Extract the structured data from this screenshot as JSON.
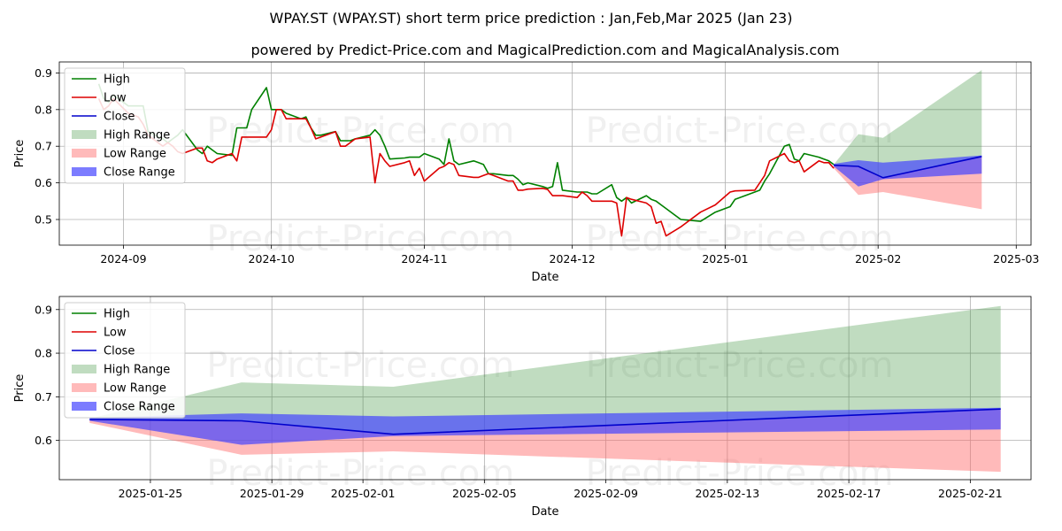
{
  "title": "WPAY.ST (WPAY.ST) short term price prediction : Jan,Feb,Mar 2025 (Jan 23)",
  "subtitle": "powered by Predict-Price.com and MagicalPrediction.com and MagicalAnalysis.com",
  "watermark": "Predict-Price.com",
  "colors": {
    "high": "#008000",
    "low": "#dd0000",
    "close": "#0000cc",
    "high_range": "#2e8b2e",
    "low_range": "#ff6666",
    "close_range": "#4444ff"
  },
  "chart_data": [
    {
      "type": "line",
      "xlabel": "Date",
      "ylabel": "Price",
      "xlim": [
        "2024-08-19",
        "2025-03-04"
      ],
      "ylim": [
        0.43,
        0.93
      ],
      "grid": true,
      "legend_position": "top-left",
      "x_ticks": [
        "2024-09",
        "2024-10",
        "2024-11",
        "2024-12",
        "2025-01",
        "2025-02",
        "2025-03"
      ],
      "y_ticks": [
        0.5,
        0.6,
        0.7,
        0.8,
        0.9
      ],
      "legend": [
        "High",
        "Low",
        "Close",
        "High Range",
        "Low Range",
        "Close Range"
      ],
      "series": [
        {
          "name": "High",
          "x": [
            "2024-08-27",
            "2024-08-28",
            "2024-08-29",
            "2024-08-30",
            "2024-09-02",
            "2024-09-03",
            "2024-09-04",
            "2024-09-05",
            "2024-09-06",
            "2024-09-09",
            "2024-09-10",
            "2024-09-11",
            "2024-09-12",
            "2024-09-13",
            "2024-09-16",
            "2024-09-17",
            "2024-09-18",
            "2024-09-19",
            "2024-09-20",
            "2024-09-23",
            "2024-09-24",
            "2024-09-25",
            "2024-09-26",
            "2024-09-27",
            "2024-09-30",
            "2024-10-01",
            "2024-10-02",
            "2024-10-03",
            "2024-10-04",
            "2024-10-07",
            "2024-10-08",
            "2024-10-09",
            "2024-10-10",
            "2024-10-11",
            "2024-10-14",
            "2024-10-15",
            "2024-10-16",
            "2024-10-17",
            "2024-10-18",
            "2024-10-21",
            "2024-10-22",
            "2024-10-23",
            "2024-10-24",
            "2024-10-25",
            "2024-10-28",
            "2024-10-29",
            "2024-10-30",
            "2024-10-31",
            "2024-11-01",
            "2024-11-04",
            "2024-11-05",
            "2024-11-06",
            "2024-11-07",
            "2024-11-08",
            "2024-11-11",
            "2024-11-12",
            "2024-11-13",
            "2024-11-14",
            "2024-11-15",
            "2024-11-18",
            "2024-11-19",
            "2024-11-20",
            "2024-11-21",
            "2024-11-22",
            "2024-11-25",
            "2024-11-26",
            "2024-11-27",
            "2024-11-28",
            "2024-11-29",
            "2024-12-02",
            "2024-12-03",
            "2024-12-04",
            "2024-12-05",
            "2024-12-06",
            "2024-12-09",
            "2024-12-10",
            "2024-12-11",
            "2024-12-12",
            "2024-12-13",
            "2024-12-16",
            "2024-12-17",
            "2024-12-18",
            "2024-12-19",
            "2024-12-20",
            "2024-12-23",
            "2024-12-27",
            "2024-12-30",
            "2025-01-02",
            "2025-01-03",
            "2025-01-07",
            "2025-01-08",
            "2025-01-09",
            "2025-01-10",
            "2025-01-13",
            "2025-01-14",
            "2025-01-15",
            "2025-01-16",
            "2025-01-17",
            "2025-01-20",
            "2025-01-21",
            "2025-01-22",
            "2025-01-23"
          ],
          "values": [
            0.87,
            0.83,
            0.82,
            0.84,
            0.81,
            0.81,
            0.81,
            0.81,
            0.74,
            0.72,
            0.71,
            0.72,
            0.73,
            0.745,
            0.69,
            0.68,
            0.7,
            0.69,
            0.68,
            0.675,
            0.75,
            0.75,
            0.75,
            0.8,
            0.86,
            0.8,
            0.8,
            0.8,
            0.79,
            0.775,
            0.78,
            0.75,
            0.73,
            0.73,
            0.74,
            0.715,
            0.715,
            0.715,
            0.72,
            0.73,
            0.745,
            0.73,
            0.7,
            0.665,
            0.668,
            0.67,
            0.67,
            0.67,
            0.68,
            0.665,
            0.65,
            0.72,
            0.66,
            0.65,
            0.66,
            0.655,
            0.65,
            0.625,
            0.625,
            0.62,
            0.62,
            0.61,
            0.595,
            0.6,
            0.59,
            0.585,
            0.59,
            0.655,
            0.58,
            0.575,
            0.575,
            0.575,
            0.57,
            0.57,
            0.595,
            0.56,
            0.55,
            0.56,
            0.545,
            0.565,
            0.555,
            0.55,
            0.54,
            0.53,
            0.5,
            0.495,
            0.52,
            0.535,
            0.555,
            0.575,
            0.58,
            0.605,
            0.625,
            0.7,
            0.705,
            0.665,
            0.66,
            0.68,
            0.67,
            0.665,
            0.66,
            0.65
          ]
        },
        {
          "name": "Low",
          "x": [
            "2024-08-27",
            "2024-08-28",
            "2024-08-29",
            "2024-08-30",
            "2024-09-02",
            "2024-09-03",
            "2024-09-04",
            "2024-09-05",
            "2024-09-06",
            "2024-09-09",
            "2024-09-10",
            "2024-09-11",
            "2024-09-12",
            "2024-09-13",
            "2024-09-16",
            "2024-09-17",
            "2024-09-18",
            "2024-09-19",
            "2024-09-20",
            "2024-09-23",
            "2024-09-24",
            "2024-09-25",
            "2024-09-26",
            "2024-09-27",
            "2024-09-30",
            "2024-10-01",
            "2024-10-02",
            "2024-10-03",
            "2024-10-04",
            "2024-10-07",
            "2024-10-08",
            "2024-10-09",
            "2024-10-10",
            "2024-10-11",
            "2024-10-14",
            "2024-10-15",
            "2024-10-16",
            "2024-10-17",
            "2024-10-18",
            "2024-10-21",
            "2024-10-22",
            "2024-10-23",
            "2024-10-24",
            "2024-10-25",
            "2024-10-28",
            "2024-10-29",
            "2024-10-30",
            "2024-10-31",
            "2024-11-01",
            "2024-11-04",
            "2024-11-05",
            "2024-11-06",
            "2024-11-07",
            "2024-11-08",
            "2024-11-11",
            "2024-11-12",
            "2024-11-13",
            "2024-11-14",
            "2024-11-15",
            "2024-11-18",
            "2024-11-19",
            "2024-11-20",
            "2024-11-21",
            "2024-11-22",
            "2024-11-25",
            "2024-11-26",
            "2024-11-27",
            "2024-11-28",
            "2024-11-29",
            "2024-12-02",
            "2024-12-03",
            "2024-12-04",
            "2024-12-05",
            "2024-12-06",
            "2024-12-09",
            "2024-12-10",
            "2024-12-11",
            "2024-12-12",
            "2024-12-13",
            "2024-12-16",
            "2024-12-17",
            "2024-12-18",
            "2024-12-19",
            "2024-12-20",
            "2024-12-23",
            "2024-12-27",
            "2024-12-30",
            "2025-01-02",
            "2025-01-03",
            "2025-01-07",
            "2025-01-08",
            "2025-01-09",
            "2025-01-10",
            "2025-01-13",
            "2025-01-14",
            "2025-01-15",
            "2025-01-16",
            "2025-01-17",
            "2025-01-20",
            "2025-01-21",
            "2025-01-22",
            "2025-01-23"
          ],
          "values": [
            0.83,
            0.8,
            0.81,
            0.83,
            0.79,
            0.785,
            0.78,
            0.76,
            0.73,
            0.7,
            0.71,
            0.7,
            0.685,
            0.68,
            0.695,
            0.695,
            0.66,
            0.655,
            0.665,
            0.68,
            0.66,
            0.725,
            0.725,
            0.725,
            0.725,
            0.745,
            0.8,
            0.8,
            0.775,
            0.775,
            0.775,
            0.75,
            0.72,
            0.725,
            0.74,
            0.7,
            0.7,
            0.71,
            0.72,
            0.725,
            0.6,
            0.68,
            0.66,
            0.645,
            0.655,
            0.66,
            0.62,
            0.64,
            0.605,
            0.64,
            0.645,
            0.655,
            0.65,
            0.62,
            0.615,
            0.615,
            0.62,
            0.625,
            0.62,
            0.605,
            0.605,
            0.58,
            0.58,
            0.583,
            0.585,
            0.582,
            0.565,
            0.565,
            0.565,
            0.56,
            0.575,
            0.565,
            0.55,
            0.55,
            0.55,
            0.545,
            0.455,
            0.56,
            0.555,
            0.545,
            0.535,
            0.49,
            0.495,
            0.455,
            0.48,
            0.52,
            0.54,
            0.575,
            0.578,
            0.58,
            0.6,
            0.62,
            0.66,
            0.68,
            0.66,
            0.655,
            0.66,
            0.63,
            0.66,
            0.655,
            0.655,
            0.64
          ]
        },
        {
          "name": "Close",
          "x": [
            "2025-01-23",
            "2025-01-28",
            "2025-02-02",
            "2025-02-22"
          ],
          "values": [
            0.648,
            0.645,
            0.614,
            0.672
          ]
        },
        {
          "name": "High Range",
          "x": [
            "2025-01-23",
            "2025-01-28",
            "2025-02-02",
            "2025-02-22"
          ],
          "upper": [
            0.65,
            0.733,
            0.723,
            0.908
          ],
          "lower": [
            0.648,
            0.645,
            0.614,
            0.672
          ]
        },
        {
          "name": "Low Range",
          "x": [
            "2025-01-23",
            "2025-01-28",
            "2025-02-02",
            "2025-02-22"
          ],
          "upper": [
            0.648,
            0.645,
            0.614,
            0.672
          ],
          "lower": [
            0.64,
            0.567,
            0.575,
            0.528
          ]
        },
        {
          "name": "Close Range",
          "x": [
            "2025-01-23",
            "2025-01-28",
            "2025-02-02",
            "2025-02-22"
          ],
          "upper": [
            0.652,
            0.662,
            0.655,
            0.675
          ],
          "lower": [
            0.645,
            0.59,
            0.61,
            0.625
          ]
        }
      ]
    },
    {
      "type": "line",
      "xlabel": "Date",
      "ylabel": "Price",
      "xlim": [
        "2025-01-22",
        "2025-02-23"
      ],
      "ylim": [
        0.51,
        0.93
      ],
      "grid": true,
      "legend_position": "top-left",
      "x_ticks": [
        "2025-01-25",
        "2025-01-29",
        "2025-02-01",
        "2025-02-05",
        "2025-02-09",
        "2025-02-13",
        "2025-02-17",
        "2025-02-21"
      ],
      "y_ticks": [
        0.6,
        0.7,
        0.8,
        0.9
      ],
      "legend": [
        "High",
        "Low",
        "Close",
        "High Range",
        "Low Range",
        "Close Range"
      ],
      "series": [
        {
          "name": "Close",
          "x": [
            "2025-01-23",
            "2025-01-28",
            "2025-02-02",
            "2025-02-22"
          ],
          "values": [
            0.648,
            0.645,
            0.614,
            0.672
          ]
        },
        {
          "name": "High Range",
          "x": [
            "2025-01-23",
            "2025-01-28",
            "2025-02-02",
            "2025-02-22"
          ],
          "upper": [
            0.65,
            0.733,
            0.723,
            0.908
          ],
          "lower": [
            0.648,
            0.645,
            0.614,
            0.672
          ]
        },
        {
          "name": "Low Range",
          "x": [
            "2025-01-23",
            "2025-01-28",
            "2025-02-02",
            "2025-02-22"
          ],
          "upper": [
            0.648,
            0.645,
            0.614,
            0.672
          ],
          "lower": [
            0.64,
            0.567,
            0.575,
            0.528
          ]
        },
        {
          "name": "Close Range",
          "x": [
            "2025-01-23",
            "2025-01-28",
            "2025-02-02",
            "2025-02-22"
          ],
          "upper": [
            0.652,
            0.662,
            0.655,
            0.675
          ],
          "lower": [
            0.645,
            0.59,
            0.61,
            0.625
          ]
        }
      ]
    }
  ]
}
